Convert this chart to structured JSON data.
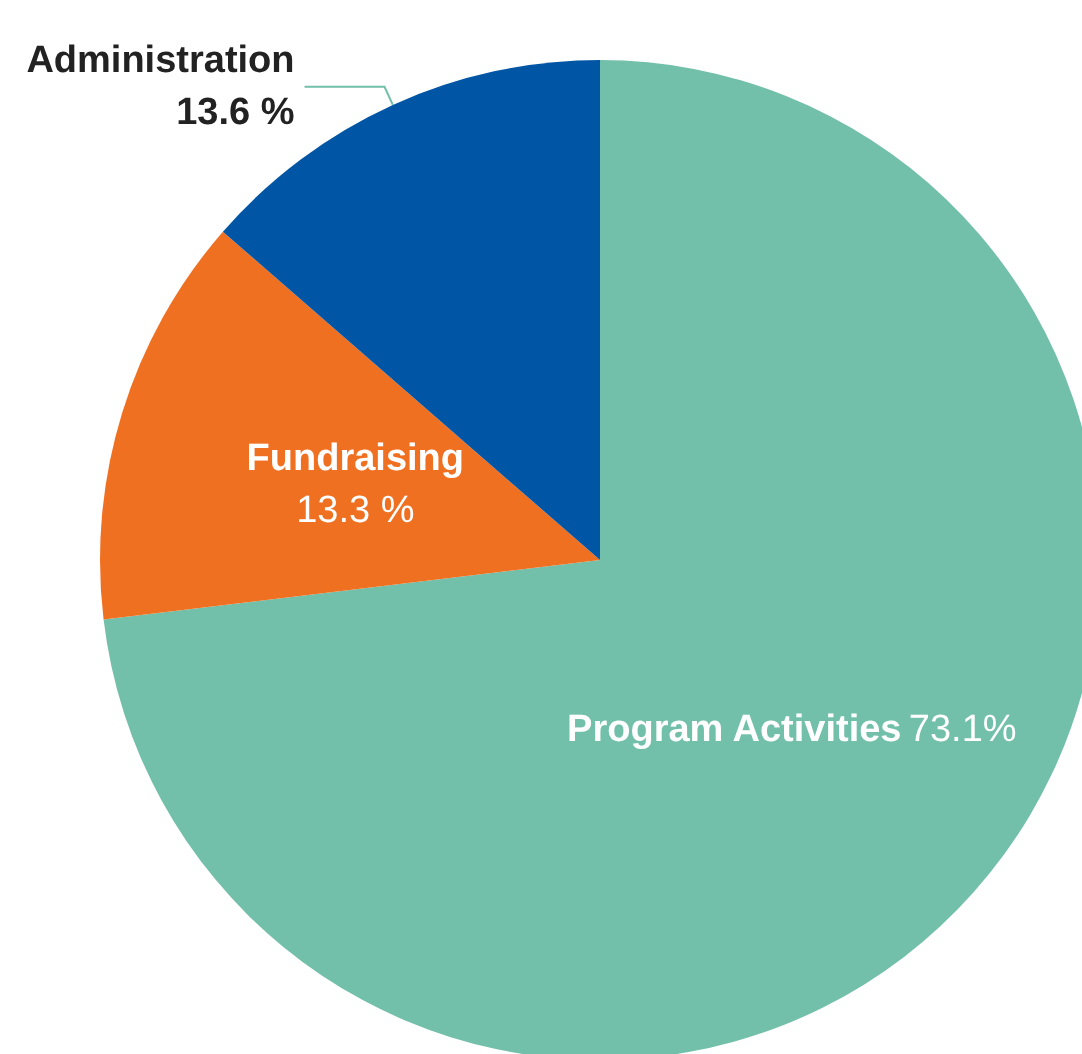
{
  "chart_data": {
    "type": "pie",
    "categories": [
      "Program Activities",
      "Fundraising",
      "Administration"
    ],
    "values": [
      73.1,
      13.3,
      13.6
    ],
    "value_labels": [
      "73.1%",
      "13.3 %",
      "13.6 %"
    ],
    "colors": [
      "#72bfaa",
      "#f07022",
      "#0056a4"
    ]
  }
}
